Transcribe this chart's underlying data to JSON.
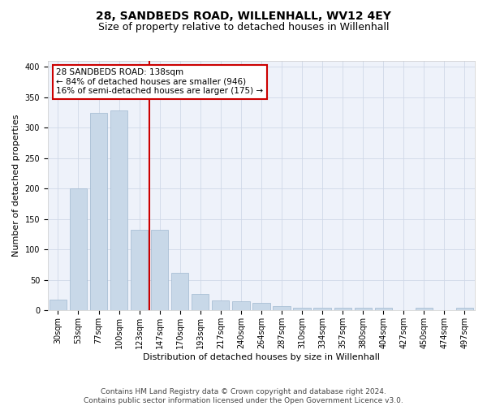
{
  "title": "28, SANDBEDS ROAD, WILLENHALL, WV12 4EY",
  "subtitle": "Size of property relative to detached houses in Willenhall",
  "xlabel": "Distribution of detached houses by size in Willenhall",
  "ylabel": "Number of detached properties",
  "categories": [
    "30sqm",
    "53sqm",
    "77sqm",
    "100sqm",
    "123sqm",
    "147sqm",
    "170sqm",
    "193sqm",
    "217sqm",
    "240sqm",
    "264sqm",
    "287sqm",
    "310sqm",
    "334sqm",
    "357sqm",
    "380sqm",
    "404sqm",
    "427sqm",
    "450sqm",
    "474sqm",
    "497sqm"
  ],
  "values": [
    18,
    200,
    325,
    328,
    133,
    133,
    62,
    27,
    16,
    15,
    12,
    7,
    5,
    4,
    4,
    4,
    4,
    1,
    4,
    1,
    5
  ],
  "bar_color": "#c8d8e8",
  "bar_edgecolor": "#a0b8d0",
  "vline_x": 4.5,
  "vline_color": "#cc0000",
  "annotation_text": "28 SANDBEDS ROAD: 138sqm\n← 84% of detached houses are smaller (946)\n16% of semi-detached houses are larger (175) →",
  "annotation_box_color": "#ffffff",
  "annotation_box_edgecolor": "#cc0000",
  "ylim": [
    0,
    410
  ],
  "yticks": [
    0,
    50,
    100,
    150,
    200,
    250,
    300,
    350,
    400
  ],
  "grid_color": "#d0d8e8",
  "background_color": "#eef2fa",
  "footer": "Contains HM Land Registry data © Crown copyright and database right 2024.\nContains public sector information licensed under the Open Government Licence v3.0.",
  "title_fontsize": 10,
  "subtitle_fontsize": 9,
  "xlabel_fontsize": 8,
  "ylabel_fontsize": 8,
  "tick_fontsize": 7,
  "annotation_fontsize": 7.5,
  "footer_fontsize": 6.5
}
